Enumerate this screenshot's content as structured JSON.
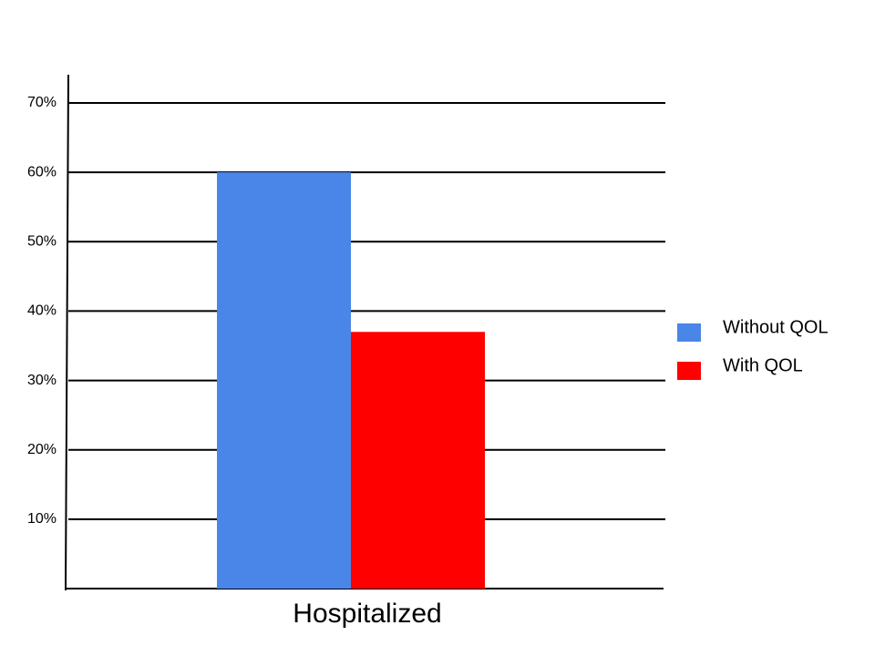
{
  "chart_data": {
    "type": "bar",
    "categories": [
      "Hospitalized"
    ],
    "series": [
      {
        "name": "Without QOL",
        "color": "#4a86e8",
        "values": [
          60
        ]
      },
      {
        "name": "With QOL",
        "color": "#ff0000",
        "values": [
          37
        ]
      }
    ],
    "ylim": [
      0,
      70
    ],
    "yticks": [
      {
        "value": 10,
        "label": "10%"
      },
      {
        "value": 20,
        "label": "20%"
      },
      {
        "value": 30,
        "label": "30%"
      },
      {
        "value": 40,
        "label": "40%"
      },
      {
        "value": 50,
        "label": "50%"
      },
      {
        "value": 60,
        "label": "60%"
      },
      {
        "value": 70,
        "label": "70%"
      }
    ],
    "grid": true,
    "legend": "right"
  }
}
